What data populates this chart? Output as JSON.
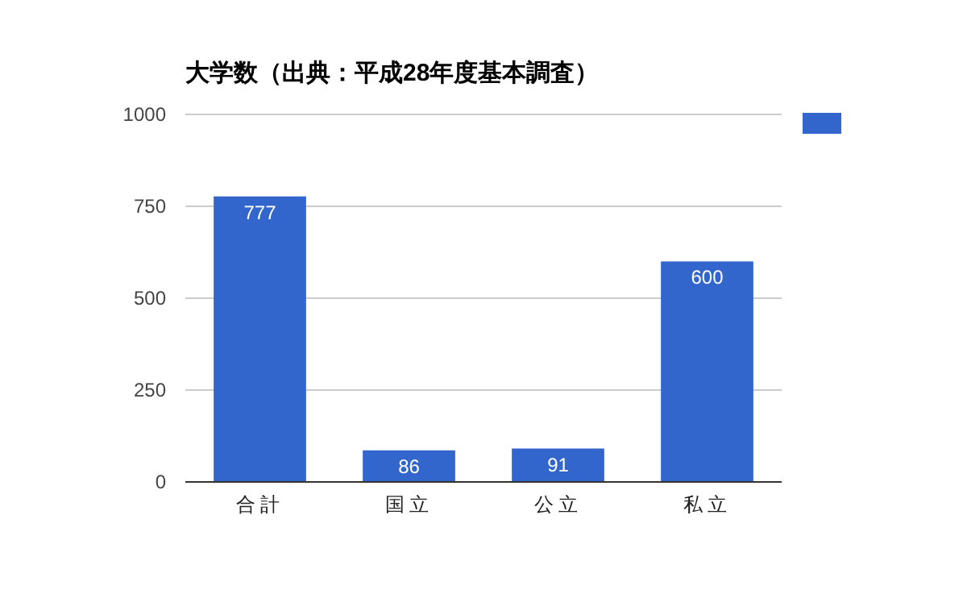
{
  "chart_data": {
    "type": "bar",
    "title": "大学数（出典：平成28年度基本調査）",
    "categories": [
      "合計",
      "国立",
      "公立",
      "私立"
    ],
    "series": [
      {
        "color": "#3366cc",
        "values": [
          777,
          86,
          91,
          600
        ]
      }
    ],
    "ylim": [
      0,
      1000
    ],
    "yticks": [
      0,
      250,
      500,
      750,
      1000
    ],
    "grid": "y",
    "data_labels": true
  }
}
